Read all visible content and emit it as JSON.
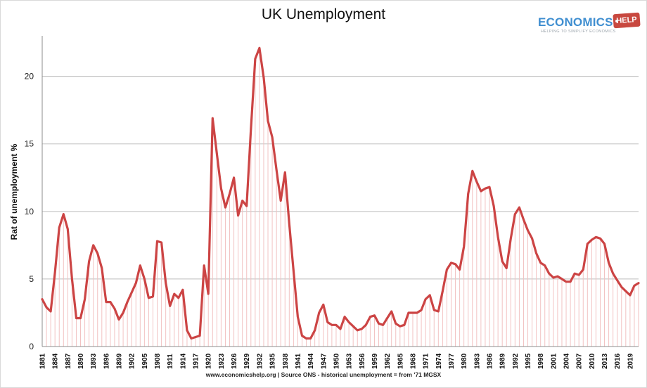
{
  "chart_data": {
    "type": "line",
    "title": "UK Unemployment",
    "ylabel": "Rat of unemployment %",
    "xlabel": "",
    "ylim": [
      0,
      23
    ],
    "yticks": [
      0,
      5,
      10,
      15,
      20
    ],
    "grid": true,
    "legend": "none",
    "colors": {
      "line": "#cc4444",
      "drop": "#f2c2c2",
      "grid": "#bdbdbd"
    },
    "xticks": [
      "1881",
      "1884",
      "1887",
      "1890",
      "1893",
      "1896",
      "1899",
      "1902",
      "1905",
      "1908",
      "1911",
      "1914",
      "1917",
      "1920",
      "1923",
      "1926",
      "1929",
      "1932",
      "1935",
      "1938",
      "1941",
      "1944",
      "1947",
      "1950",
      "1953",
      "1956",
      "1959",
      "1962",
      "1965",
      "1968",
      "1971",
      "1974",
      "1977",
      "1980",
      "1983",
      "1986",
      "1989",
      "1992",
      "1995",
      "1998",
      "2001",
      "2004",
      "2007",
      "2010",
      "2013",
      "2016",
      "2019"
    ],
    "series": [
      {
        "x": [
          1881,
          1882,
          1883,
          1884,
          1885,
          1886,
          1887,
          1888,
          1889,
          1890,
          1891,
          1892,
          1893,
          1894,
          1895,
          1896,
          1897,
          1898,
          1899,
          1900,
          1901,
          1902,
          1903,
          1904,
          1905,
          1906,
          1907,
          1908,
          1909,
          1910,
          1911,
          1912,
          1913,
          1914,
          1915,
          1916,
          1917,
          1918,
          1919,
          1920,
          1921,
          1922,
          1923,
          1924,
          1925,
          1926,
          1927,
          1928,
          1929,
          1930,
          1931,
          1932,
          1933,
          1934,
          1935,
          1936,
          1937,
          1938,
          1939,
          1940,
          1941,
          1942,
          1943,
          1944,
          1945,
          1946,
          1947,
          1948,
          1949,
          1950,
          1951,
          1952,
          1953,
          1954,
          1955,
          1956,
          1957,
          1958,
          1959,
          1960,
          1961,
          1962,
          1963,
          1964,
          1965,
          1966,
          1967,
          1968,
          1969,
          1970,
          1971,
          1972,
          1973,
          1974,
          1975,
          1976,
          1977,
          1978,
          1979,
          1980,
          1981,
          1982,
          1983,
          1984,
          1985,
          1986,
          1987,
          1988,
          1989,
          1990,
          1991,
          1992,
          1993,
          1994,
          1995,
          1996,
          1997,
          1998,
          1999,
          2000,
          2001,
          2002,
          2003,
          2004,
          2005,
          2006,
          2007,
          2008,
          2009,
          2010,
          2011,
          2012,
          2013,
          2014,
          2015,
          2016,
          2017,
          2018,
          2019,
          2020,
          2021
        ],
        "y": [
          3.5,
          2.9,
          2.6,
          5.5,
          8.8,
          9.8,
          8.7,
          5.0,
          2.1,
          2.1,
          3.5,
          6.3,
          7.5,
          6.9,
          5.8,
          3.3,
          3.3,
          2.8,
          2.0,
          2.5,
          3.3,
          4.0,
          4.7,
          6.0,
          5.0,
          3.6,
          3.7,
          7.8,
          7.7,
          4.7,
          3.0,
          3.9,
          3.6,
          4.2,
          1.2,
          0.6,
          0.7,
          0.8,
          6.0,
          3.9,
          16.9,
          14.3,
          11.7,
          10.3,
          11.3,
          12.5,
          9.7,
          10.8,
          10.4,
          16.1,
          21.3,
          22.1,
          19.9,
          16.7,
          15.5,
          13.1,
          10.8,
          12.9,
          9.1,
          5.6,
          2.2,
          0.8,
          0.6,
          0.6,
          1.2,
          2.5,
          3.1,
          1.8,
          1.6,
          1.6,
          1.3,
          2.2,
          1.8,
          1.5,
          1.2,
          1.3,
          1.6,
          2.2,
          2.3,
          1.7,
          1.6,
          2.1,
          2.6,
          1.7,
          1.5,
          1.6,
          2.5,
          2.5,
          2.5,
          2.7,
          3.5,
          3.8,
          2.7,
          2.6,
          4.1,
          5.7,
          6.2,
          6.1,
          5.7,
          7.4,
          11.3,
          13.0,
          12.2,
          11.5,
          11.7,
          11.8,
          10.4,
          8.1,
          6.3,
          5.8,
          8.0,
          9.8,
          10.3,
          9.4,
          8.6,
          8.0,
          6.9,
          6.2,
          6.0,
          5.4,
          5.1,
          5.2,
          5.0,
          4.8,
          4.8,
          5.4,
          5.3,
          5.7,
          7.6,
          7.9,
          8.1,
          8.0,
          7.6,
          6.2,
          5.4,
          4.9,
          4.4,
          4.1,
          3.8,
          4.5,
          4.7
        ]
      }
    ]
  },
  "page": {
    "source_text": "www.economicshelp.org | Source ONS - historical unemployment = from '71 MGSX",
    "logo_word": "ECONOMICS",
    "logo_tag": "HELP",
    "logo_sub": "HELPING TO SIMPLIFY ECONOMICS"
  }
}
